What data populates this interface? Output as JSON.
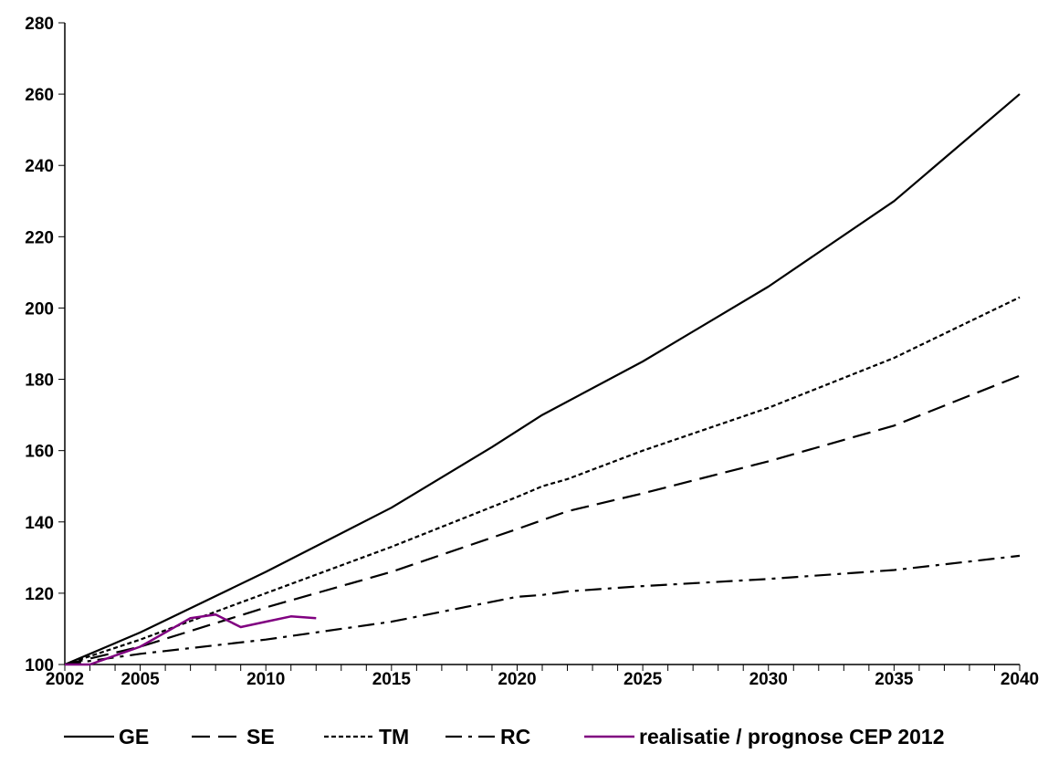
{
  "chart_data": {
    "type": "line",
    "title": "",
    "xlabel": "",
    "ylabel": "",
    "xlim": [
      2002,
      2040
    ],
    "ylim": [
      100,
      280
    ],
    "x_ticks": [
      2002,
      2005,
      2010,
      2015,
      2020,
      2025,
      2030,
      2035,
      2040
    ],
    "y_ticks": [
      100,
      120,
      140,
      160,
      180,
      200,
      220,
      240,
      260,
      280
    ],
    "grid": false,
    "legend": "bottom",
    "series": [
      {
        "name": "GE",
        "color": "#000000",
        "style": "solid",
        "x": [
          2002,
          2005,
          2010,
          2015,
          2019,
          2021,
          2025,
          2030,
          2035,
          2040
        ],
        "y": [
          100,
          109,
          126,
          144,
          161,
          170,
          185,
          206,
          230,
          260
        ]
      },
      {
        "name": "SE",
        "color": "#000000",
        "style": "dashed",
        "x": [
          2002,
          2005,
          2010,
          2015,
          2020,
          2022,
          2025,
          2030,
          2035,
          2040
        ],
        "y": [
          100,
          105,
          116,
          126,
          138,
          143,
          148,
          157,
          167,
          181
        ]
      },
      {
        "name": "TM",
        "color": "#000000",
        "style": "dotted",
        "x": [
          2002,
          2005,
          2010,
          2015,
          2020,
          2021,
          2022,
          2025,
          2030,
          2035,
          2040
        ],
        "y": [
          100,
          107,
          120,
          133,
          147,
          150,
          152,
          160,
          172,
          186,
          203
        ]
      },
      {
        "name": "RC",
        "color": "#000000",
        "style": "dashdot",
        "x": [
          2002,
          2005,
          2010,
          2015,
          2020,
          2021,
          2022,
          2025,
          2030,
          2035,
          2040
        ],
        "y": [
          100,
          103,
          107,
          112,
          119,
          119.5,
          120.5,
          122,
          124,
          126.5,
          130.5
        ]
      },
      {
        "name": "realisatie / prognose CEP 2012",
        "color": "#800080",
        "style": "solid",
        "x": [
          2002,
          2003,
          2004,
          2005,
          2006,
          2007,
          2008,
          2009,
          2010,
          2011,
          2012
        ],
        "y": [
          100,
          100,
          102.5,
          105,
          109,
          113,
          114,
          110.5,
          112,
          113.5,
          113
        ]
      }
    ]
  }
}
